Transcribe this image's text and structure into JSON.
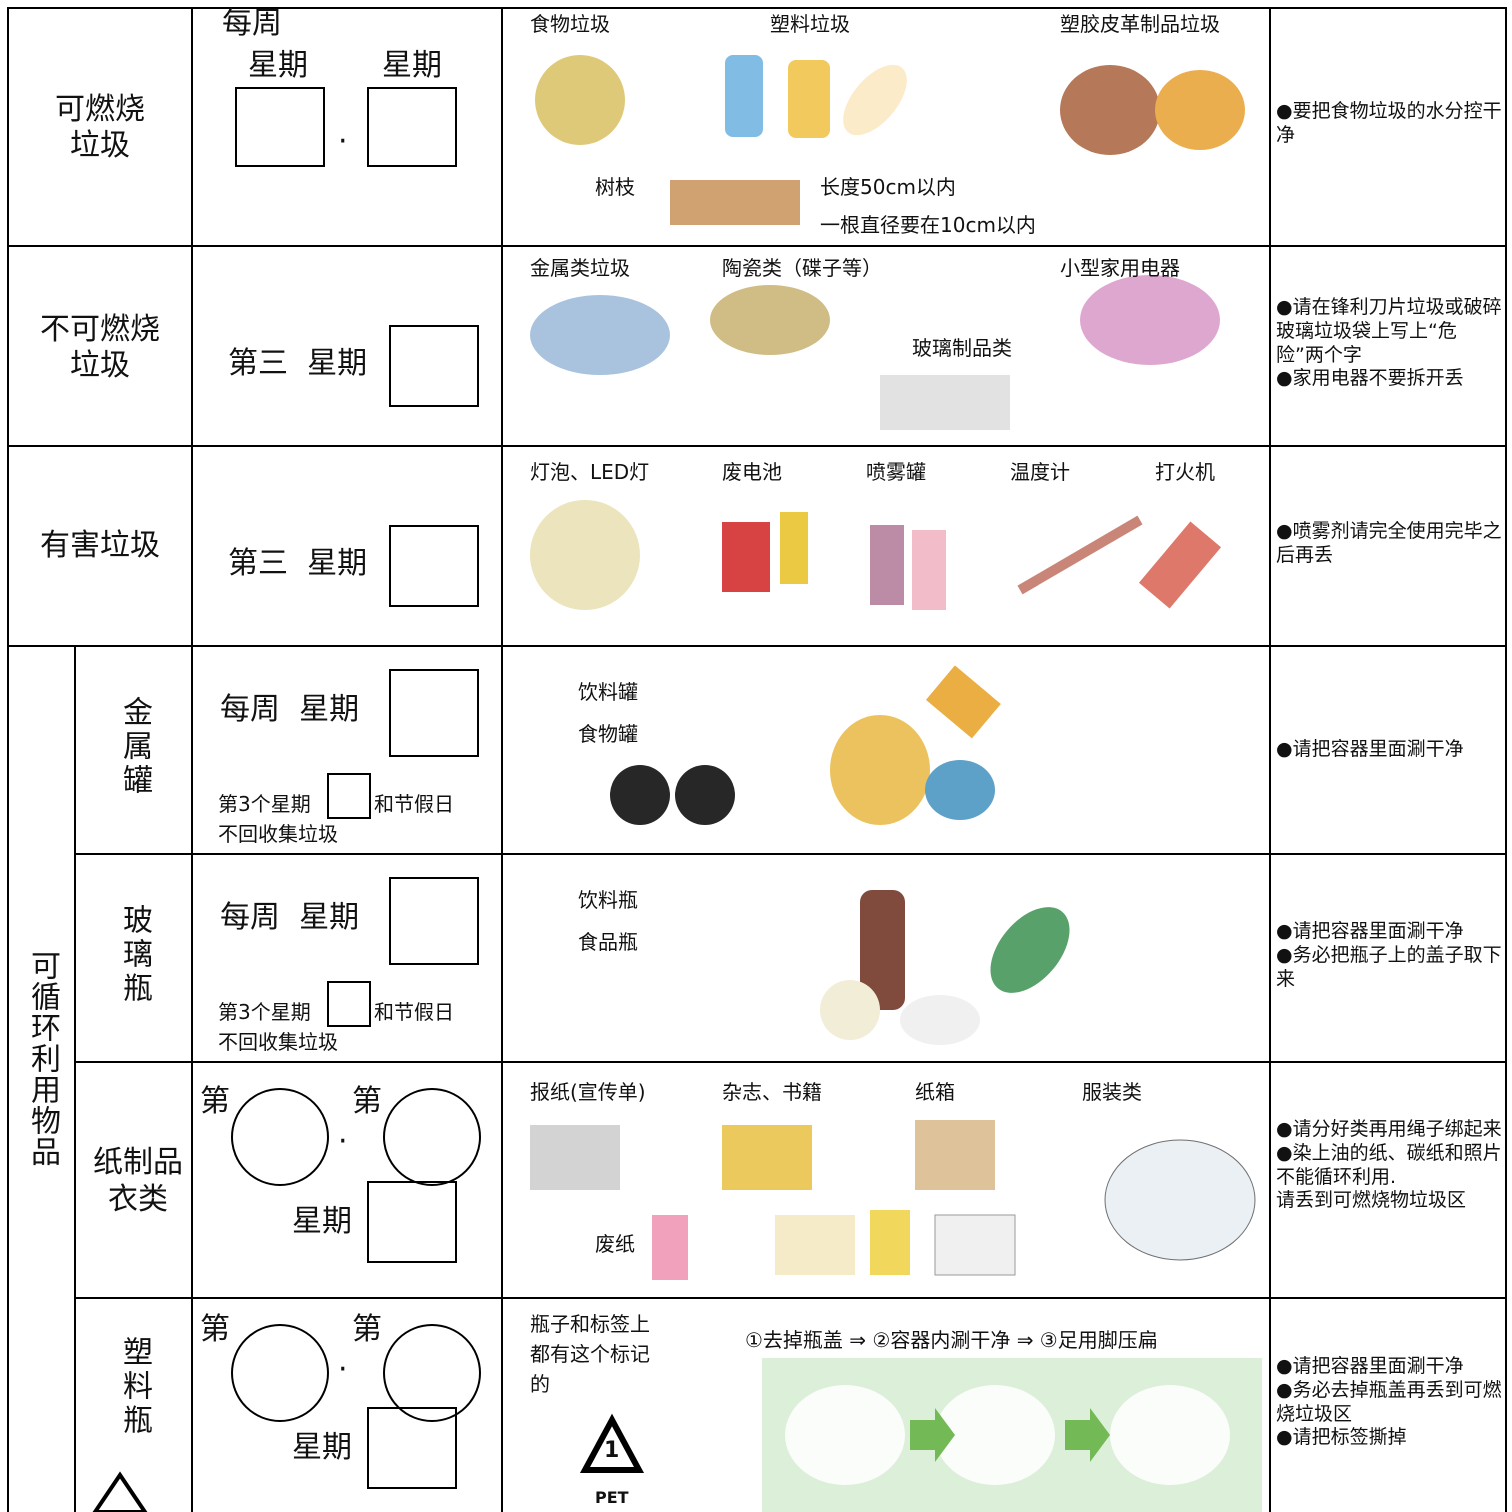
{
  "burnable": {
    "category": [
      "可燃烧",
      "垃圾"
    ],
    "every_week": "每周",
    "weekday_1": "星期",
    "weekday_2": "星期",
    "separator": "·",
    "items": [
      "食物垃圾",
      "塑料垃圾",
      "塑胶皮革制品垃圾"
    ],
    "branches": "树枝",
    "branch_rules": [
      "长度50cm以内",
      "一根直径要在10cm以内"
    ],
    "notes": [
      "●要把食物垃圾的水分控干净"
    ]
  },
  "non_burnable": {
    "category": [
      "不可燃烧",
      "垃圾"
    ],
    "schedule": "第三  星期",
    "items": [
      "金属类垃圾",
      "陶瓷类（碟子等）",
      "小型家用电器",
      "玻璃制品类"
    ],
    "notes": [
      "●请在锋利刀片垃圾或破碎玻璃垃圾袋上写上“危险”两个字",
      "●家用电器不要拆开丢"
    ]
  },
  "hazardous": {
    "category": "有害垃圾",
    "schedule": "第三  星期",
    "items": [
      "灯泡、LED灯",
      "废电池",
      "喷雾罐",
      "温度计",
      "打火机"
    ],
    "notes": [
      "●喷雾剂请完全使用完毕之后再丢"
    ]
  },
  "recyclable": {
    "category": "可循环利用物品",
    "metal_cans": {
      "category": "金属罐",
      "schedule": "每周  星期",
      "exception": [
        "第3个星期",
        "和节假日",
        "不回收集垃圾"
      ],
      "items": [
        "饮料罐",
        "食物罐"
      ],
      "notes": [
        "●请把容器里面涮干净"
      ]
    },
    "glass_bottles": {
      "category": "玻璃瓶",
      "schedule": "每周  星期",
      "exception": [
        "第3个星期",
        "和节假日",
        "不回收集垃圾"
      ],
      "items": [
        "饮料瓶",
        "食品瓶"
      ],
      "notes": [
        "●请把容器里面涮干净",
        "●务必把瓶子上的盖子取下来"
      ]
    },
    "paper_clothes": {
      "category": [
        "纸制品",
        "衣类"
      ],
      "nth_1": "第",
      "nth_2": "第",
      "separator": "·",
      "weekday": "星期",
      "items": [
        "报纸(宣传单)",
        "杂志、书籍",
        "纸箱",
        "服装类"
      ],
      "waste_paper": "废纸",
      "notes": [
        "●请分好类再用绳子绑起来",
        "●染上油的纸、碳纸和照片不能循环利用.",
        "请丢到可燃烧物垃圾区"
      ]
    },
    "plastic_bottles": {
      "category": "塑料瓶",
      "nth_1": "第",
      "nth_2": "第",
      "separator": "·",
      "weekday": "星期",
      "mark_text": [
        "瓶子和标签上",
        "都有这个标记",
        "的"
      ],
      "mark_number": "1",
      "mark_label": "PET",
      "steps": "①去掉瓶盖 ⇒ ②容器内涮干净 ⇒ ③足用脚压扁",
      "notes": [
        "●请把容器里面涮干净",
        "●务必去掉瓶盖再丢到可燃烧垃圾区",
        "●请把标签撕掉"
      ]
    }
  }
}
